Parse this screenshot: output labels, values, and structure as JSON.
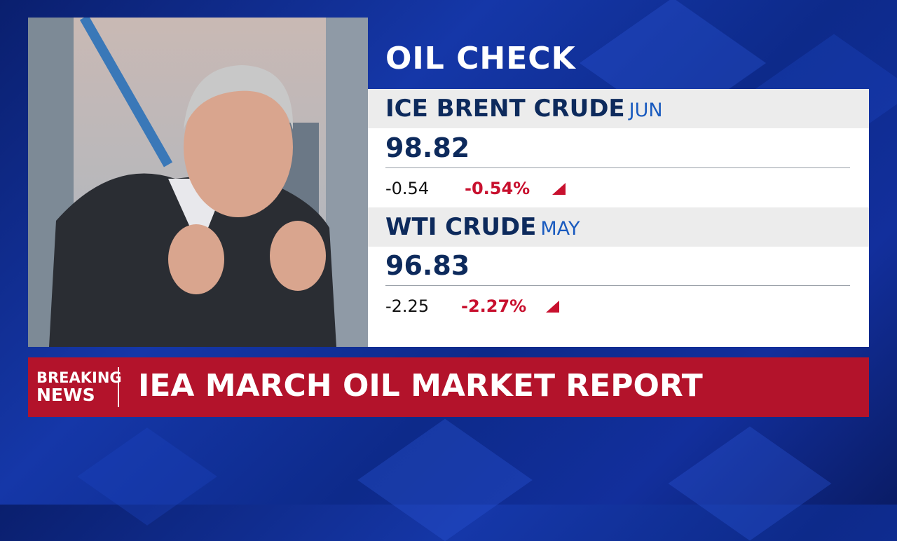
{
  "panel": {
    "title": "OIL CHECK",
    "instruments": [
      {
        "name": "ICE BRENT CRUDE",
        "contract": "JUN",
        "price": "98.82",
        "change": "-0.54",
        "change_pct": "-0.54%"
      },
      {
        "name": "WTI CRUDE",
        "contract": "MAY",
        "price": "96.83",
        "change": "-2.25",
        "change_pct": "-2.27%"
      }
    ]
  },
  "ticker": {
    "label_top": "BREAKING",
    "label_bottom": "NEWS",
    "headline": "IEA MARCH OIL MARKET REPORT"
  }
}
